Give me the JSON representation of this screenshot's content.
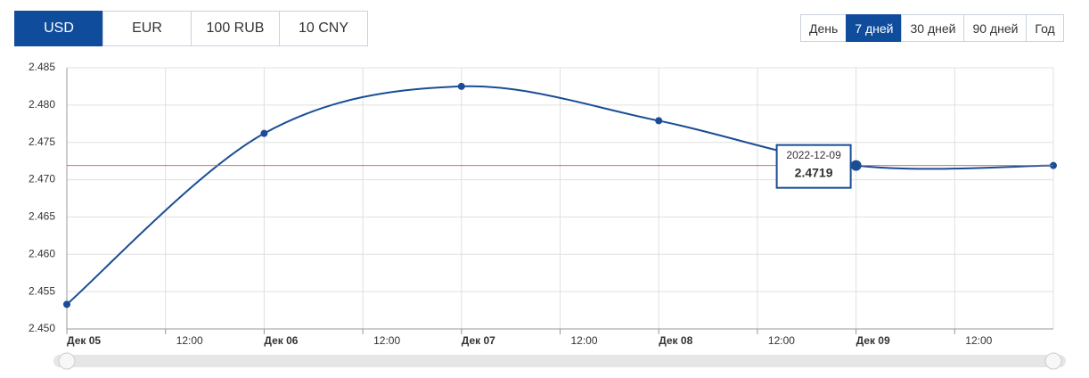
{
  "currency_tabs": [
    "USD",
    "EUR",
    "100 RUB",
    "10 CNY"
  ],
  "period_tabs": [
    "День",
    "7 дней",
    "30 дней",
    "90 дней",
    "Год"
  ],
  "chart_data": {
    "type": "line",
    "x": [
      0,
      24,
      48,
      72,
      96,
      120
    ],
    "series": [
      {
        "name": "USD",
        "color": "#1a4d96",
        "values": [
          2.4533,
          2.4762,
          2.4825,
          2.4779,
          2.4719,
          2.4719
        ]
      }
    ],
    "xlim": [
      0,
      120
    ],
    "xticks": [
      {
        "value": 0,
        "label": "Дек 05"
      },
      {
        "value": 12,
        "label": "12:00"
      },
      {
        "value": 24,
        "label": "Дек 06"
      },
      {
        "value": 36,
        "label": "12:00"
      },
      {
        "value": 48,
        "label": "Дек 07"
      },
      {
        "value": 60,
        "label": "12:00"
      },
      {
        "value": 72,
        "label": "Дек 08"
      },
      {
        "value": 84,
        "label": "12:00"
      },
      {
        "value": 96,
        "label": "Дек 09"
      },
      {
        "value": 108,
        "label": "12:00"
      }
    ],
    "ylim": [
      2.45,
      2.485
    ],
    "yticks": [
      {
        "value": 2.45,
        "label": "2.450"
      },
      2.455,
      {
        "value": 2.46,
        "label": "2.460"
      },
      2.465,
      {
        "value": 2.47,
        "label": "2.470"
      },
      2.475,
      {
        "value": 2.48,
        "label": "2.480"
      },
      2.485
    ],
    "grid": true,
    "tooltip": {
      "date": "2022-12-09"
    }
  }
}
